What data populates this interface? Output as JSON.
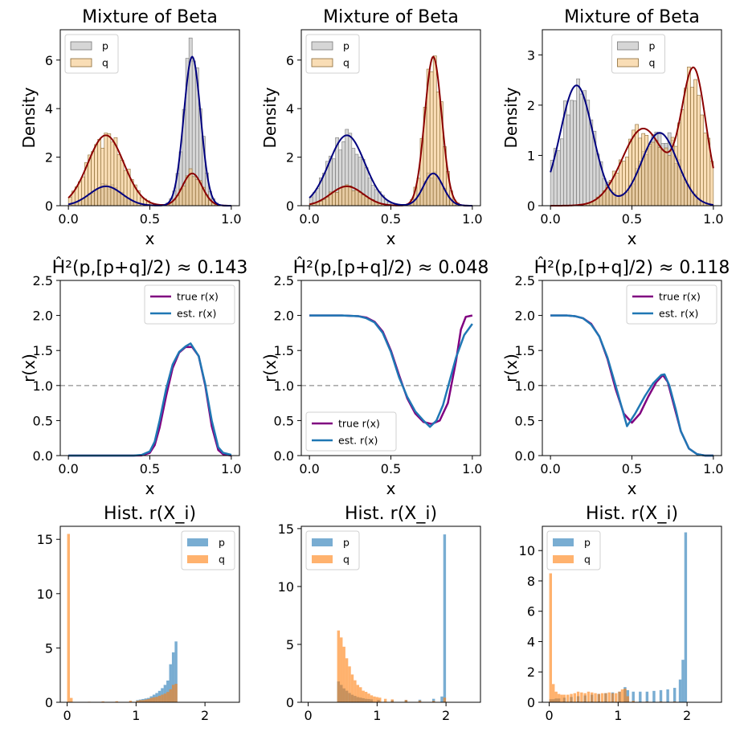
{
  "figure": {
    "colors": {
      "p_fill": "#c8c8c8",
      "q_fill": "#f4c178",
      "p_curve": "#00007f",
      "q_curve": "#8b0000",
      "true_r": "#800080",
      "est_r": "#1f77b4",
      "p_hist": "#1f77b4",
      "q_hist": "#ff7f0e",
      "refline": "#aaaaaa"
    }
  },
  "chart_data": [
    {
      "id": "a1",
      "type": "histogram+kde",
      "title": "Mixture of Beta",
      "xlabel": "x",
      "ylabel": "Density",
      "xlim": [
        -0.05,
        1.05
      ],
      "ylim": [
        0,
        7.25
      ],
      "xticks": [
        0.0,
        0.5,
        1.0
      ],
      "xtick_labels": [
        "0.0",
        "0.5",
        "1.0"
      ],
      "yticks": [
        0,
        2,
        4,
        6
      ],
      "ytick_labels": [
        "0",
        "2",
        "4",
        "6"
      ],
      "legend": {
        "position": "top-left",
        "entries": [
          "p",
          "q"
        ]
      },
      "densities": {
        "p": [
          {
            "w": 0.2,
            "mu": 0.23,
            "sd": 0.1
          },
          {
            "w": 0.8,
            "mu": 0.76,
            "sd": 0.052
          }
        ],
        "q": [
          {
            "w": 0.8,
            "mu": 0.23,
            "sd": 0.11
          },
          {
            "w": 0.2,
            "mu": 0.76,
            "sd": 0.06
          }
        ]
      }
    },
    {
      "id": "a2",
      "type": "histogram+kde",
      "title": "Mixture of Beta",
      "xlabel": "x",
      "ylabel": "Density",
      "xlim": [
        -0.05,
        1.05
      ],
      "ylim": [
        0,
        7.25
      ],
      "xticks": [
        0.0,
        0.5,
        1.0
      ],
      "xtick_labels": [
        "0.0",
        "0.5",
        "1.0"
      ],
      "yticks": [
        0,
        2,
        4,
        6
      ],
      "ytick_labels": [
        "0",
        "2",
        "4",
        "6"
      ],
      "legend": {
        "position": "top-left",
        "entries": [
          "p",
          "q"
        ]
      },
      "densities": {
        "p": [
          {
            "w": 0.8,
            "mu": 0.23,
            "sd": 0.11
          },
          {
            "w": 0.2,
            "mu": 0.76,
            "sd": 0.06
          }
        ],
        "q": [
          {
            "w": 0.2,
            "mu": 0.23,
            "sd": 0.1
          },
          {
            "w": 0.8,
            "mu": 0.76,
            "sd": 0.052
          }
        ]
      }
    },
    {
      "id": "a3",
      "type": "histogram+kde",
      "title": "Mixture of Beta",
      "xlabel": "x",
      "ylabel": "Density",
      "xlim": [
        -0.05,
        1.05
      ],
      "ylim": [
        0,
        3.5
      ],
      "xticks": [
        0.0,
        0.5,
        1.0
      ],
      "xtick_labels": [
        "0.0",
        "0.5",
        "1.0"
      ],
      "yticks": [
        0,
        1,
        2,
        3
      ],
      "ytick_labels": [
        "0",
        "1",
        "2",
        "3"
      ],
      "legend": {
        "position": "top-center",
        "entries": [
          "p",
          "q"
        ]
      },
      "densities": {
        "p": [
          {
            "w": 0.6,
            "mu": 0.16,
            "sd": 0.1
          },
          {
            "w": 0.4,
            "mu": 0.67,
            "sd": 0.11
          }
        ],
        "q": [
          {
            "w": 0.5,
            "mu": 0.57,
            "sd": 0.13
          },
          {
            "w": 0.5,
            "mu": 0.88,
            "sd": 0.075
          }
        ]
      }
    },
    {
      "id": "b1",
      "type": "line",
      "title": "Ĥ²(p,[p+q]/2) ≈ 0.143",
      "xlabel": "x",
      "ylabel": "r(x)",
      "xlim": [
        -0.05,
        1.05
      ],
      "ylim": [
        0,
        2.5
      ],
      "xticks": [
        0.0,
        0.5,
        1.0
      ],
      "xtick_labels": [
        "0.0",
        "0.5",
        "1.0"
      ],
      "yticks": [
        0,
        0.5,
        1,
        1.5,
        2,
        2.5
      ],
      "ytick_labels": [
        "0.0",
        "0.5",
        "1.0",
        "1.5",
        "2.0",
        "2.5"
      ],
      "hline": 1.0,
      "legend": {
        "position": "top-right",
        "entries": [
          "true r(x)",
          "est. r(x)"
        ]
      },
      "series": [
        {
          "name": "true r(x)",
          "x": [
            0,
            0.1,
            0.2,
            0.3,
            0.4,
            0.45,
            0.5,
            0.53,
            0.56,
            0.6,
            0.64,
            0.68,
            0.72,
            0.76,
            0.8,
            0.84,
            0.88,
            0.92,
            0.95,
            1.0
          ],
          "y": [
            0,
            0,
            0,
            0,
            0,
            0.003,
            0.04,
            0.15,
            0.4,
            0.85,
            1.25,
            1.47,
            1.55,
            1.55,
            1.42,
            1.0,
            0.42,
            0.08,
            0.02,
            0
          ]
        },
        {
          "name": "est. r(x)",
          "x": [
            0,
            0.1,
            0.2,
            0.3,
            0.4,
            0.45,
            0.5,
            0.53,
            0.56,
            0.6,
            0.64,
            0.68,
            0.72,
            0.75,
            0.8,
            0.84,
            0.88,
            0.92,
            0.95,
            1.0
          ],
          "y": [
            0,
            0,
            0,
            0,
            0,
            0.01,
            0.06,
            0.2,
            0.5,
            0.95,
            1.3,
            1.48,
            1.56,
            1.6,
            1.42,
            1.02,
            0.5,
            0.12,
            0.04,
            0.01
          ]
        }
      ]
    },
    {
      "id": "b2",
      "type": "line",
      "title": "Ĥ²(p,[p+q]/2) ≈ 0.048",
      "xlabel": "x",
      "ylabel": "r(x)",
      "xlim": [
        -0.05,
        1.05
      ],
      "ylim": [
        0,
        2.5
      ],
      "xticks": [
        0.0,
        0.5,
        1.0
      ],
      "xtick_labels": [
        "0.0",
        "0.5",
        "1.0"
      ],
      "yticks": [
        0,
        0.5,
        1,
        1.5,
        2,
        2.5
      ],
      "ytick_labels": [
        "0.0",
        "0.5",
        "1.0",
        "1.5",
        "2.0",
        "2.5"
      ],
      "hline": 1.0,
      "legend": {
        "position": "bottom-left",
        "entries": [
          "true r(x)",
          "est. r(x)"
        ]
      },
      "series": [
        {
          "name": "true r(x)",
          "x": [
            0,
            0.1,
            0.2,
            0.3,
            0.35,
            0.4,
            0.45,
            0.5,
            0.55,
            0.6,
            0.65,
            0.7,
            0.75,
            0.8,
            0.85,
            0.9,
            0.93,
            0.96,
            1.0
          ],
          "y": [
            2,
            2,
            2,
            1.99,
            1.97,
            1.91,
            1.77,
            1.5,
            1.15,
            0.82,
            0.6,
            0.48,
            0.45,
            0.5,
            0.75,
            1.35,
            1.8,
            1.98,
            2.0
          ]
        },
        {
          "name": "est. r(x)",
          "x": [
            0,
            0.1,
            0.2,
            0.3,
            0.35,
            0.4,
            0.45,
            0.5,
            0.55,
            0.6,
            0.65,
            0.7,
            0.74,
            0.78,
            0.82,
            0.86,
            0.9,
            0.95,
            1.0
          ],
          "y": [
            2,
            2,
            2,
            1.99,
            1.96,
            1.9,
            1.75,
            1.48,
            1.12,
            0.84,
            0.63,
            0.5,
            0.41,
            0.5,
            0.72,
            1.06,
            1.4,
            1.72,
            1.88
          ]
        }
      ]
    },
    {
      "id": "b3",
      "type": "line",
      "title": "Ĥ²(p,[p+q]/2) ≈ 0.118",
      "xlabel": "x",
      "ylabel": "r(x)",
      "xlim": [
        -0.05,
        1.05
      ],
      "ylim": [
        0,
        2.5
      ],
      "xticks": [
        0.0,
        0.5,
        1.0
      ],
      "xtick_labels": [
        "0.0",
        "0.5",
        "1.0"
      ],
      "yticks": [
        0,
        0.5,
        1,
        1.5,
        2,
        2.5
      ],
      "ytick_labels": [
        "0.0",
        "0.5",
        "1.0",
        "1.5",
        "2.0",
        "2.5"
      ],
      "hline": 1.0,
      "legend": {
        "position": "top-right",
        "entries": [
          "true r(x)",
          "est. r(x)"
        ]
      },
      "series": [
        {
          "name": "true r(x)",
          "x": [
            0,
            0.1,
            0.15,
            0.2,
            0.25,
            0.3,
            0.35,
            0.4,
            0.45,
            0.5,
            0.55,
            0.6,
            0.65,
            0.69,
            0.72,
            0.76,
            0.8,
            0.85,
            0.9,
            0.95,
            1.0
          ],
          "y": [
            2,
            2,
            1.99,
            1.96,
            1.88,
            1.7,
            1.38,
            0.95,
            0.6,
            0.47,
            0.6,
            0.84,
            1.05,
            1.15,
            1.05,
            0.7,
            0.35,
            0.1,
            0.02,
            0,
            0
          ]
        },
        {
          "name": "est. r(x)",
          "x": [
            0,
            0.1,
            0.15,
            0.2,
            0.25,
            0.3,
            0.35,
            0.4,
            0.47,
            0.52,
            0.58,
            0.63,
            0.68,
            0.7,
            0.73,
            0.77,
            0.8,
            0.85,
            0.9,
            0.95,
            1.0
          ],
          "y": [
            2,
            2,
            1.99,
            1.96,
            1.87,
            1.7,
            1.4,
            1.0,
            0.42,
            0.6,
            0.85,
            1.03,
            1.15,
            1.16,
            1.0,
            0.65,
            0.35,
            0.1,
            0.02,
            0,
            0
          ]
        }
      ]
    },
    {
      "id": "c1",
      "type": "histogram",
      "title": "Hist. r(X_i)",
      "xlabel": "",
      "ylabel": "",
      "xlim": [
        -0.1,
        2.5
      ],
      "ylim": [
        0,
        16.2
      ],
      "xticks": [
        0,
        1,
        2
      ],
      "xtick_labels": [
        "0",
        "1",
        "2"
      ],
      "yticks": [
        0,
        5,
        10,
        15
      ],
      "ytick_labels": [
        "0",
        "5",
        "10",
        "15"
      ],
      "legend": {
        "position": "top-right",
        "entries": [
          "p",
          "q"
        ]
      },
      "bin_width": 0.04,
      "p_bins": [
        [
          1.0,
          0.2
        ],
        [
          1.04,
          0.25
        ],
        [
          1.08,
          0.3
        ],
        [
          1.12,
          0.35
        ],
        [
          1.16,
          0.4
        ],
        [
          1.2,
          0.55
        ],
        [
          1.24,
          0.7
        ],
        [
          1.28,
          0.85
        ],
        [
          1.32,
          1.05
        ],
        [
          1.36,
          1.3
        ],
        [
          1.4,
          1.6
        ],
        [
          1.44,
          2.0
        ],
        [
          1.48,
          3.5
        ],
        [
          1.52,
          4.6
        ],
        [
          1.56,
          5.6
        ]
      ],
      "q_bins": [
        [
          0.0,
          15.5
        ],
        [
          0.04,
          0.4
        ],
        [
          0.3,
          0.05
        ],
        [
          0.5,
          0.08
        ],
        [
          0.7,
          0.1
        ],
        [
          0.9,
          0.15
        ],
        [
          1.0,
          0.15
        ],
        [
          1.04,
          0.2
        ],
        [
          1.08,
          0.2
        ],
        [
          1.12,
          0.25
        ],
        [
          1.16,
          0.3
        ],
        [
          1.2,
          0.4
        ],
        [
          1.24,
          0.45
        ],
        [
          1.28,
          0.5
        ],
        [
          1.32,
          0.6
        ],
        [
          1.36,
          0.7
        ],
        [
          1.4,
          0.8
        ],
        [
          1.44,
          0.95
        ],
        [
          1.48,
          1.2
        ],
        [
          1.52,
          1.6
        ],
        [
          1.56,
          1.7
        ]
      ]
    },
    {
      "id": "c2",
      "type": "histogram",
      "title": "Hist. r(X_i)",
      "xlabel": "",
      "ylabel": "",
      "xlim": [
        -0.1,
        2.5
      ],
      "ylim": [
        0,
        15.2
      ],
      "xticks": [
        0,
        1,
        2
      ],
      "xtick_labels": [
        "0",
        "1",
        "2"
      ],
      "yticks": [
        0,
        5,
        10,
        15
      ],
      "ytick_labels": [
        "0",
        "5",
        "10",
        "15"
      ],
      "legend": {
        "position": "top-left",
        "entries": [
          "p",
          "q"
        ]
      },
      "bin_width": 0.04,
      "p_bins": [
        [
          0.42,
          1.8
        ],
        [
          0.46,
          1.5
        ],
        [
          0.5,
          1.2
        ],
        [
          0.54,
          1.0
        ],
        [
          0.58,
          0.8
        ],
        [
          0.62,
          0.65
        ],
        [
          0.66,
          0.55
        ],
        [
          0.7,
          0.45
        ],
        [
          0.74,
          0.4
        ],
        [
          0.78,
          0.35
        ],
        [
          0.82,
          0.3
        ],
        [
          0.86,
          0.28
        ],
        [
          0.9,
          0.25
        ],
        [
          1.0,
          0.2
        ],
        [
          1.2,
          0.18
        ],
        [
          1.4,
          0.2
        ],
        [
          1.6,
          0.22
        ],
        [
          1.8,
          0.3
        ],
        [
          1.92,
          0.5
        ],
        [
          1.96,
          14.5
        ]
      ],
      "q_bins": [
        [
          0.42,
          6.2
        ],
        [
          0.46,
          5.6
        ],
        [
          0.5,
          4.8
        ],
        [
          0.54,
          3.8
        ],
        [
          0.58,
          3.1
        ],
        [
          0.62,
          2.4
        ],
        [
          0.66,
          1.9
        ],
        [
          0.7,
          1.5
        ],
        [
          0.74,
          1.3
        ],
        [
          0.78,
          1.0
        ],
        [
          0.82,
          0.9
        ],
        [
          0.86,
          0.75
        ],
        [
          0.9,
          0.6
        ],
        [
          0.94,
          0.5
        ],
        [
          0.98,
          0.45
        ],
        [
          1.02,
          0.4
        ],
        [
          1.1,
          0.3
        ],
        [
          1.2,
          0.25
        ],
        [
          1.4,
          0.2
        ],
        [
          1.6,
          0.15
        ],
        [
          1.8,
          0.12
        ],
        [
          1.96,
          0.4
        ]
      ]
    },
    {
      "id": "c3",
      "type": "histogram",
      "title": "Hist. r(X_i)",
      "xlabel": "",
      "ylabel": "",
      "xlim": [
        -0.1,
        2.5
      ],
      "ylim": [
        0,
        11.6
      ],
      "xticks": [
        0,
        1,
        2
      ],
      "xtick_labels": [
        "0",
        "1",
        "2"
      ],
      "yticks": [
        0,
        2,
        4,
        6,
        8,
        10
      ],
      "ytick_labels": [
        "0",
        "2",
        "4",
        "6",
        "8",
        "10"
      ],
      "legend": {
        "position": "top-left",
        "entries": [
          "p",
          "q"
        ]
      },
      "bin_width": 0.04,
      "p_bins": [
        [
          0.0,
          0.2
        ],
        [
          0.04,
          0.2
        ],
        [
          0.08,
          0.25
        ],
        [
          0.12,
          0.25
        ],
        [
          0.2,
          0.3
        ],
        [
          0.3,
          0.35
        ],
        [
          0.4,
          0.4
        ],
        [
          0.5,
          0.45
        ],
        [
          0.6,
          0.5
        ],
        [
          0.7,
          0.55
        ],
        [
          0.8,
          0.6
        ],
        [
          0.9,
          0.65
        ],
        [
          1.0,
          0.7
        ],
        [
          1.08,
          1.0
        ],
        [
          1.12,
          0.8
        ],
        [
          1.2,
          0.7
        ],
        [
          1.3,
          0.7
        ],
        [
          1.4,
          0.7
        ],
        [
          1.5,
          0.75
        ],
        [
          1.6,
          0.8
        ],
        [
          1.7,
          0.85
        ],
        [
          1.8,
          0.95
        ],
        [
          1.88,
          1.5
        ],
        [
          1.92,
          2.8
        ],
        [
          1.96,
          11.2
        ]
      ],
      "q_bins": [
        [
          0.0,
          8.5
        ],
        [
          0.04,
          1.2
        ],
        [
          0.08,
          0.7
        ],
        [
          0.12,
          0.55
        ],
        [
          0.16,
          0.5
        ],
        [
          0.2,
          0.5
        ],
        [
          0.25,
          0.5
        ],
        [
          0.3,
          0.55
        ],
        [
          0.35,
          0.6
        ],
        [
          0.4,
          0.7
        ],
        [
          0.45,
          0.65
        ],
        [
          0.5,
          0.6
        ],
        [
          0.55,
          0.7
        ],
        [
          0.6,
          0.65
        ],
        [
          0.65,
          0.6
        ],
        [
          0.7,
          0.55
        ],
        [
          0.75,
          0.6
        ],
        [
          0.8,
          0.6
        ],
        [
          0.85,
          0.65
        ],
        [
          0.9,
          0.6
        ],
        [
          0.95,
          0.6
        ],
        [
          1.0,
          0.7
        ],
        [
          1.04,
          0.85
        ],
        [
          1.08,
          0.9
        ],
        [
          1.12,
          0.4
        ],
        [
          1.2,
          0.1
        ],
        [
          1.4,
          0.05
        ],
        [
          1.6,
          0.05
        ],
        [
          1.8,
          0.05
        ]
      ]
    }
  ]
}
